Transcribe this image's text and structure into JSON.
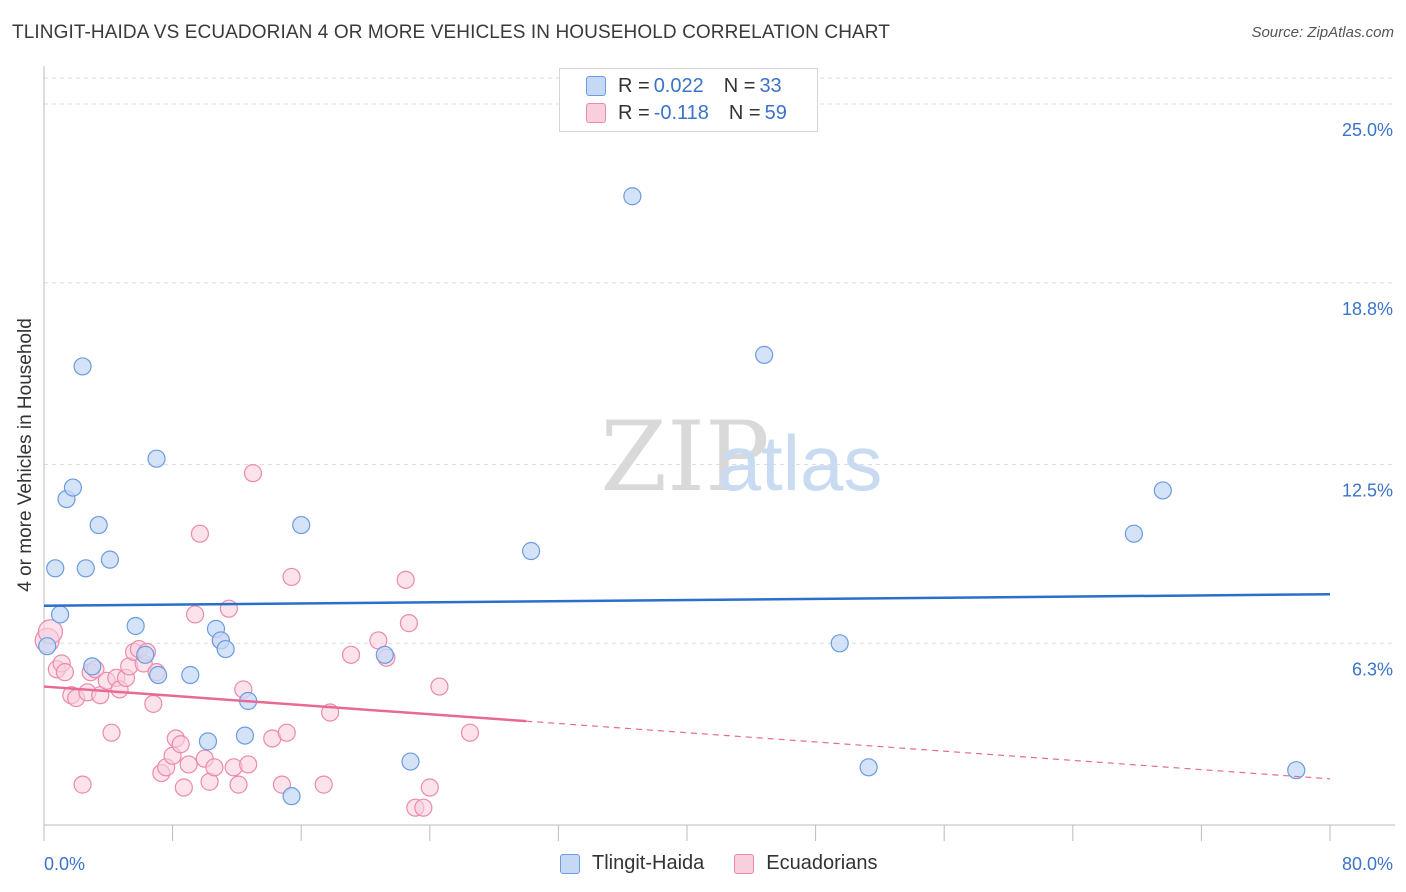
{
  "title": "TLINGIT-HAIDA VS ECUADORIAN 4 OR MORE VEHICLES IN HOUSEHOLD CORRELATION CHART",
  "source": "Source: ZipAtlas.com",
  "watermark": {
    "zip": "ZIP",
    "atlas": "atlas"
  },
  "legend": {
    "series1": {
      "r_label": "R = ",
      "r_value": "0.022",
      "n_label": "N = ",
      "n_value": "33"
    },
    "series2": {
      "r_label": "R = ",
      "r_value": "-0.118",
      "n_label": "N = ",
      "n_value": "59"
    }
  },
  "chart_data": {
    "type": "scatter",
    "title": "TLINGIT-HAIDA VS ECUADORIAN 4 OR MORE VEHICLES IN HOUSEHOLD CORRELATION CHART",
    "xlabel": "",
    "ylabel": "4 or more Vehicles in Household",
    "xlim": [
      0,
      80
    ],
    "ylim": [
      0,
      25.9
    ],
    "x_tick_labels": [
      "0.0%",
      "80.0%"
    ],
    "y_ticks": [
      6.3,
      12.5,
      18.8,
      25.0
    ],
    "y_tick_labels": [
      "6.3%",
      "12.5%",
      "18.8%",
      "25.0%"
    ],
    "colors": {
      "tlingit": "#6b9be0",
      "tlingit_fill": "#c5d9f5",
      "ecuador": "#ec8aaa",
      "ecuador_fill": "#f9cfdd",
      "tlingit_line": "#2a6fcb",
      "ecuador_line": "#e86a94"
    },
    "series": [
      {
        "name": "Tlingit-Haida",
        "points": [
          [
            0.2,
            6.2
          ],
          [
            0.7,
            8.9
          ],
          [
            1.0,
            7.3
          ],
          [
            1.4,
            11.3
          ],
          [
            1.8,
            11.7
          ],
          [
            2.4,
            15.9
          ],
          [
            2.6,
            8.9
          ],
          [
            3.0,
            5.5
          ],
          [
            3.4,
            10.4
          ],
          [
            4.1,
            9.2
          ],
          [
            5.7,
            6.9
          ],
          [
            6.3,
            5.9
          ],
          [
            7.0,
            12.7
          ],
          [
            7.1,
            5.2
          ],
          [
            9.1,
            5.2
          ],
          [
            10.2,
            2.9
          ],
          [
            10.7,
            6.8
          ],
          [
            11.0,
            6.4
          ],
          [
            11.3,
            6.1
          ],
          [
            12.5,
            3.1
          ],
          [
            12.7,
            4.3
          ],
          [
            15.4,
            1.0
          ],
          [
            16.0,
            10.4
          ],
          [
            21.2,
            5.9
          ],
          [
            22.8,
            2.2
          ],
          [
            30.3,
            9.5
          ],
          [
            36.6,
            21.8
          ],
          [
            44.8,
            16.3
          ],
          [
            49.5,
            6.3
          ],
          [
            51.3,
            2.0
          ],
          [
            67.8,
            10.1
          ],
          [
            69.6,
            11.6
          ],
          [
            77.9,
            1.9
          ]
        ],
        "trend": {
          "x0": 0,
          "y0": 7.6,
          "x1": 80,
          "y1": 8.0
        }
      },
      {
        "name": "Ecuadorians",
        "points": [
          [
            0.2,
            6.4
          ],
          [
            0.4,
            6.7
          ],
          [
            0.8,
            5.4
          ],
          [
            1.1,
            5.6
          ],
          [
            1.3,
            5.3
          ],
          [
            1.7,
            4.5
          ],
          [
            2.0,
            4.4
          ],
          [
            2.4,
            1.4
          ],
          [
            2.7,
            4.6
          ],
          [
            2.9,
            5.3
          ],
          [
            3.2,
            5.4
          ],
          [
            3.5,
            4.5
          ],
          [
            3.9,
            5.0
          ],
          [
            4.2,
            3.2
          ],
          [
            4.5,
            5.1
          ],
          [
            4.7,
            4.7
          ],
          [
            5.1,
            5.1
          ],
          [
            5.3,
            5.5
          ],
          [
            5.6,
            6.0
          ],
          [
            5.9,
            6.1
          ],
          [
            6.2,
            5.6
          ],
          [
            6.4,
            6.0
          ],
          [
            6.8,
            4.2
          ],
          [
            7.0,
            5.3
          ],
          [
            7.3,
            1.8
          ],
          [
            7.6,
            2.0
          ],
          [
            8.0,
            2.4
          ],
          [
            8.2,
            3.0
          ],
          [
            8.5,
            2.8
          ],
          [
            8.7,
            1.3
          ],
          [
            9.0,
            2.1
          ],
          [
            9.4,
            7.3
          ],
          [
            9.7,
            10.1
          ],
          [
            10.0,
            2.3
          ],
          [
            10.3,
            1.5
          ],
          [
            10.6,
            2.0
          ],
          [
            11.0,
            6.4
          ],
          [
            11.5,
            7.5
          ],
          [
            11.8,
            2.0
          ],
          [
            12.1,
            1.4
          ],
          [
            12.4,
            4.7
          ],
          [
            12.7,
            2.1
          ],
          [
            13.0,
            12.2
          ],
          [
            14.2,
            3.0
          ],
          [
            14.8,
            1.4
          ],
          [
            15.1,
            3.2
          ],
          [
            15.4,
            8.6
          ],
          [
            17.4,
            1.4
          ],
          [
            17.8,
            3.9
          ],
          [
            19.1,
            5.9
          ],
          [
            20.8,
            6.4
          ],
          [
            21.3,
            5.8
          ],
          [
            22.5,
            8.5
          ],
          [
            22.7,
            7.0
          ],
          [
            23.1,
            0.6
          ],
          [
            23.6,
            0.6
          ],
          [
            24.0,
            1.3
          ],
          [
            24.6,
            4.8
          ],
          [
            26.5,
            3.2
          ]
        ],
        "trend": {
          "x0": 0,
          "y0": 4.8,
          "x1": 30,
          "y1": 3.6
        },
        "trend_dashed": {
          "x0": 30,
          "y0": 3.6,
          "x1": 80,
          "y1": 1.6
        }
      }
    ]
  },
  "bottom_legend": {
    "item1": "Tlingit-Haida",
    "item2": "Ecuadorians"
  }
}
